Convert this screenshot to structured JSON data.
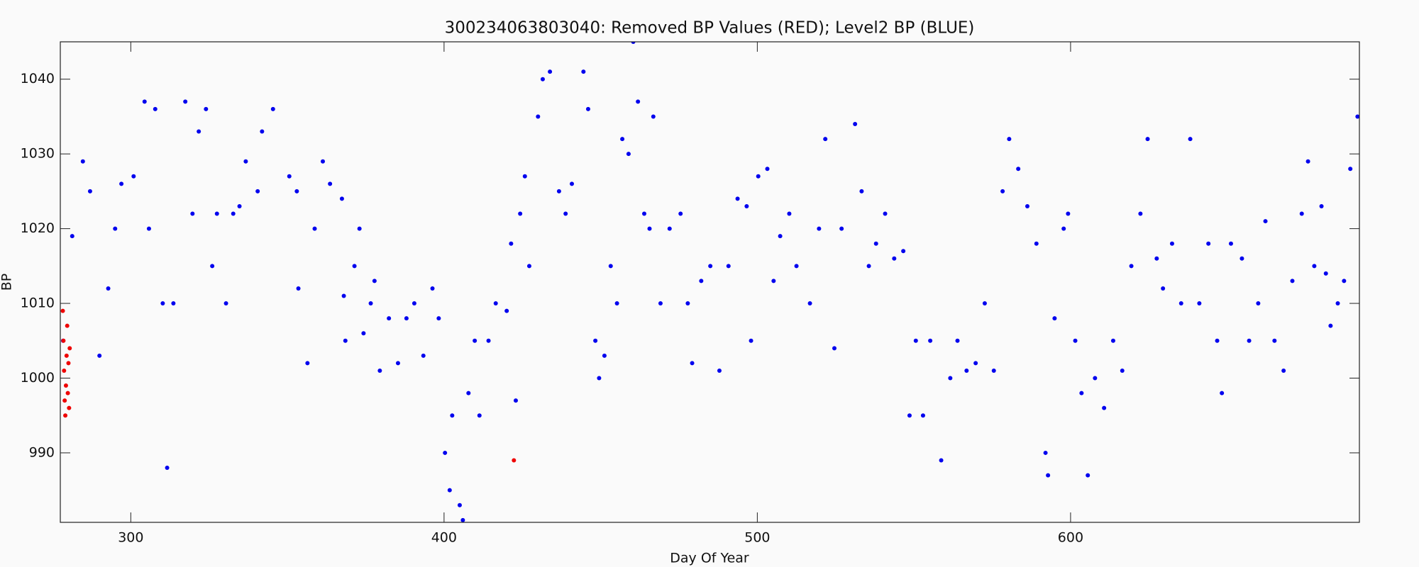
{
  "chart_data": {
    "type": "scatter",
    "title": "300234063803040: Removed BP Values (RED); Level2 BP (BLUE)",
    "x_label": "Day Of Year",
    "y_label": "BP",
    "xlim": [
      277.5,
      692.2
    ],
    "ylim": [
      980.7,
      1045
    ],
    "xticks": [
      300,
      400,
      500,
      600
    ],
    "yticks": [
      990,
      1000,
      1010,
      1020,
      1030,
      1040
    ],
    "series": [
      {
        "color": "#0000ee",
        "x": [
          278.4,
          281.3,
          284.7,
          287,
          290,
          292.8,
          295,
          297,
          300.9,
          304.4,
          305.8,
          307.8,
          310.2,
          311.6,
          313.6,
          317.4,
          319.7,
          321.7,
          324,
          326,
          327.5,
          330.4,
          332.7,
          334.7,
          336.7,
          340.5,
          341.9,
          345.4,
          350.6,
          353,
          353.5,
          356.4,
          358.7,
          361.3,
          363.6,
          367.4,
          368,
          368.5,
          371.4,
          373,
          374.3,
          376.6,
          377.8,
          379.5,
          382.4,
          385.3,
          388,
          390.5,
          393.4,
          396.3,
          398.3,
          400.3,
          401.8,
          402.6,
          405,
          406,
          407.8,
          409.8,
          411.3,
          414.2,
          416.5,
          420,
          421.4,
          422.9,
          424.3,
          425.8,
          427.2,
          430,
          431.5,
          433.8,
          436.7,
          438.8,
          440.8,
          444.5,
          446,
          448.3,
          449.5,
          451.2,
          453.2,
          455.2,
          456.9,
          458.9,
          460.4,
          461.9,
          463.9,
          465.6,
          466.8,
          469.1,
          472,
          475.5,
          477.8,
          479.2,
          482.1,
          485,
          487.9,
          490.8,
          493.7,
          496.6,
          498,
          500.3,
          503.2,
          505.2,
          507.3,
          510.2,
          512.5,
          516.8,
          519.7,
          521.7,
          524.6,
          526.9,
          531.2,
          533.3,
          535.6,
          537.9,
          540.8,
          543.7,
          546.6,
          548.6,
          550.6,
          552.9,
          555.2,
          558.7,
          561.6,
          563.9,
          566.8,
          569.7,
          572.6,
          575.5,
          578.3,
          580.4,
          583.3,
          586.2,
          589.1,
          592,
          592.8,
          594.9,
          597.8,
          599.2,
          601.5,
          603.5,
          605.5,
          607.8,
          610.7,
          613.6,
          616.5,
          619.4,
          622.3,
          624.6,
          627.5,
          629.5,
          632.4,
          635.3,
          638.2,
          641.1,
          644,
          646.8,
          648.3,
          651.2,
          654.7,
          657,
          659.9,
          662.2,
          665.1,
          668,
          670.8,
          673.8,
          675.8,
          677.8,
          680.1,
          681.5,
          683,
          685.3,
          687.3,
          689.3,
          691.6
        ],
        "values": [
          1005,
          1019,
          1029,
          1025,
          1003,
          1012,
          1020,
          1026,
          1027,
          1037,
          1020,
          1036,
          1010,
          988,
          1010,
          1037,
          1022,
          1033,
          1036,
          1015,
          1022,
          1010,
          1022,
          1023,
          1029,
          1025,
          1033,
          1036,
          1027,
          1025,
          1012,
          1002,
          1020,
          1029,
          1026,
          1024,
          1011,
          1005,
          1015,
          1020,
          1006,
          1010,
          1013,
          1001,
          1008,
          1002,
          1008,
          1010,
          1003,
          1012,
          1008,
          990,
          985,
          995,
          983,
          981,
          998,
          1005,
          995,
          1005,
          1010,
          1009,
          1018,
          997,
          1022,
          1027,
          1015,
          1035,
          1040,
          1041,
          1025,
          1022,
          1026,
          1041,
          1036,
          1005,
          1000,
          1003,
          1015,
          1010,
          1032,
          1030,
          1045,
          1037,
          1022,
          1020,
          1035,
          1010,
          1020,
          1022,
          1010,
          1002,
          1013,
          1015,
          1001,
          1015,
          1024,
          1023,
          1005,
          1027,
          1028,
          1013,
          1019,
          1022,
          1015,
          1010,
          1020,
          1032,
          1004,
          1020,
          1034,
          1025,
          1015,
          1018,
          1022,
          1016,
          1017,
          995,
          1005,
          995,
          1005,
          989,
          1000,
          1005,
          1001,
          1002,
          1010,
          1001,
          1025,
          1032,
          1028,
          1023,
          1018,
          990,
          987,
          1008,
          1020,
          1022,
          1005,
          998,
          987,
          1000,
          996,
          1005,
          1001,
          1015,
          1022,
          1032,
          1016,
          1012,
          1018,
          1010,
          1032,
          1010,
          1018,
          1005,
          998,
          1018,
          1016,
          1005,
          1010,
          1021,
          1005,
          1001,
          1013,
          1022,
          1029,
          1015,
          1023,
          1014,
          1007,
          1010,
          1013,
          1028,
          1035
        ]
      },
      {
        "color": "#ee0000",
        "x": [
          278.3,
          278.5,
          278.7,
          278.9,
          279.1,
          279.3,
          279.5,
          279.7,
          279.9,
          280.1,
          280.3,
          280.5,
          422.3
        ],
        "values": [
          1009,
          1005,
          1001,
          997,
          995,
          999,
          1003,
          1007,
          998,
          1002,
          996,
          1004,
          989
        ]
      }
    ]
  }
}
